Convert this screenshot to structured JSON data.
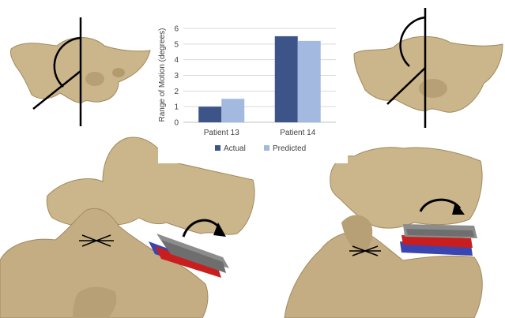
{
  "chart_data": {
    "type": "bar",
    "categories": [
      "Patient 13",
      "Patient 14"
    ],
    "series": [
      {
        "name": "Actual",
        "values": [
          1.0,
          5.5
        ],
        "color": "#3c5487"
      },
      {
        "name": "Predicted",
        "values": [
          1.5,
          5.2
        ],
        "color": "#a3b9e0"
      }
    ],
    "ylabel": "Range of Motion (degrees)",
    "ylim": [
      0,
      6
    ],
    "yticks": [
      0,
      1,
      2,
      3,
      4,
      5,
      6
    ],
    "grid": true,
    "legend": "bottom"
  },
  "colors": {
    "bone": "#cbb58a",
    "bone_shadow": "#a08a5e",
    "implant_gray": "#8c8c8c",
    "implant_blue": "#3a45b0",
    "implant_red": "#c81e1e"
  },
  "icons": [
    "rotation-arrow-icon",
    "angle-marker-icon",
    "pinch-marker-icon"
  ]
}
